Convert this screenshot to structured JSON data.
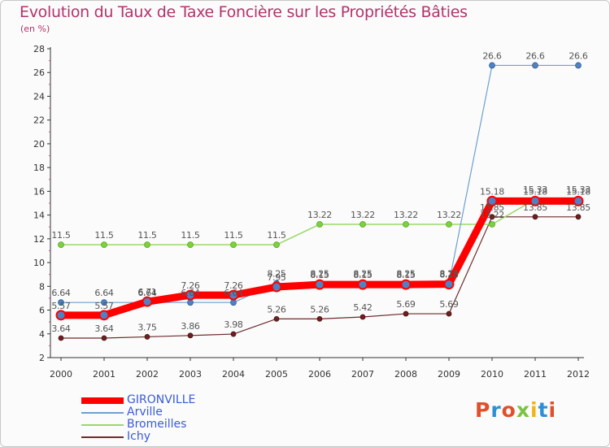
{
  "title": "Evolution du Taux de Taxe Foncière sur les Propriétés Bâties",
  "unit": "(en %)",
  "brand": "Proxiti",
  "brand_colors": [
    "#e0502a",
    "#2f8fd4",
    "#e0502a",
    "#7cc242",
    "#f2b417",
    "#2f8fd4",
    "#e0502a"
  ],
  "chart_data": {
    "type": "line",
    "title": "Evolution du Taux de Taxe Foncière sur les Propriétés Bâties",
    "ylabel": "(en %)",
    "xlabel": "",
    "ylim": [
      2,
      28
    ],
    "yticks": [
      2,
      4,
      6,
      8,
      10,
      12,
      14,
      16,
      18,
      20,
      22,
      24,
      26,
      28
    ],
    "categories": [
      "2000",
      "2001",
      "2002",
      "2003",
      "2004",
      "2005",
      "2006",
      "2007",
      "2008",
      "2009",
      "2010",
      "2011",
      "2012"
    ],
    "series": [
      {
        "name": "GIRONVILLE",
        "color": "#ff0000",
        "values": [
          5.57,
          5.57,
          6.71,
          7.26,
          7.26,
          7.95,
          8.15,
          8.15,
          8.15,
          8.18,
          15.18,
          15.18,
          15.18
        ],
        "labels": [
          "5.57",
          "5.57",
          "6.71",
          "7.26",
          "7.26",
          "7.95",
          "8.15",
          "8.15",
          "8.15",
          "8.18",
          "15.18",
          "15.18",
          "15.18"
        ]
      },
      {
        "name": "Arville",
        "color": "#6f9fcf",
        "values": [
          6.64,
          6.64,
          6.64,
          6.64,
          6.64,
          8.25,
          8.25,
          8.25,
          8.25,
          8.25,
          26.6,
          26.6,
          26.6
        ],
        "labels": [
          "6.64",
          "6.64",
          "6.64",
          "6.64",
          "6.64",
          "8.25",
          "8.25",
          "8.25",
          "8.25",
          "8.25",
          "26.6",
          "26.6",
          "26.6"
        ]
      },
      {
        "name": "Bromeilles",
        "color": "#99d96a",
        "values": [
          11.5,
          11.5,
          11.5,
          11.5,
          11.5,
          11.5,
          13.22,
          13.22,
          13.22,
          13.22,
          13.22,
          15.33,
          15.33
        ],
        "labels": [
          "11.5",
          "11.5",
          "11.5",
          "11.5",
          "11.5",
          "11.5",
          "13.22",
          "13.22",
          "13.22",
          "13.22",
          "13.22",
          "15.33",
          "15.33"
        ]
      },
      {
        "name": "Ichy",
        "color": "#6e2b2b",
        "values": [
          3.64,
          3.64,
          3.75,
          3.86,
          3.98,
          5.26,
          5.26,
          5.42,
          5.69,
          5.69,
          13.85,
          13.85,
          13.85
        ],
        "labels": [
          "3.64",
          "3.64",
          "3.75",
          "3.86",
          "3.98",
          "5.26",
          "5.26",
          "5.42",
          "5.69",
          "5.69",
          "13.85",
          "13.85",
          "13.85"
        ]
      }
    ],
    "legend": "bottom-left",
    "grid": false
  }
}
